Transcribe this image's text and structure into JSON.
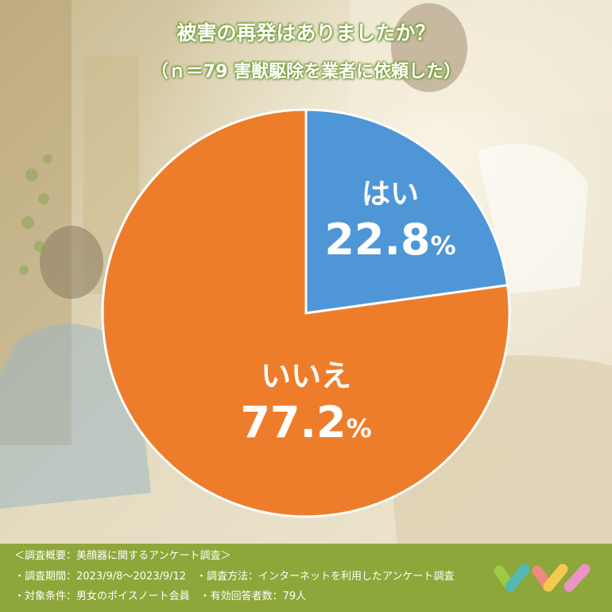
{
  "header": {
    "title": "被害の再発はありましたか？",
    "subtitle": "（ｎ＝79 害獣駆除を業者に依頼した）"
  },
  "colors": {
    "yes": "#4f96d6",
    "no": "#ee7d2b",
    "footer": "#8da73a",
    "title_outline": "#7aa23e"
  },
  "chart_data": {
    "type": "pie",
    "title": "被害の再発はありましたか？",
    "subtitle": "（ｎ＝79 害獣駆除を業者に依頼した）",
    "slices": [
      {
        "label": "はい",
        "value": 22.8,
        "display": "22.8",
        "unit": "%",
        "color": "#4f96d6"
      },
      {
        "label": "いいえ",
        "value": 77.2,
        "display": "77.2",
        "unit": "%",
        "color": "#ee7d2b"
      }
    ],
    "start": "12 o'clock",
    "direction": "clockwise"
  },
  "footer": {
    "line1": "＜調査概要：美顔器に関するアンケート調査＞",
    "line2": "・調査期間：2023/9/8～2023/9/12　・調査方法：インターネットを利用したアンケート調査",
    "line3": "・対象条件：男女のポイスノート会員　・有効回答者数：79人"
  },
  "logo": {
    "icon": "brand-logo-icon"
  }
}
